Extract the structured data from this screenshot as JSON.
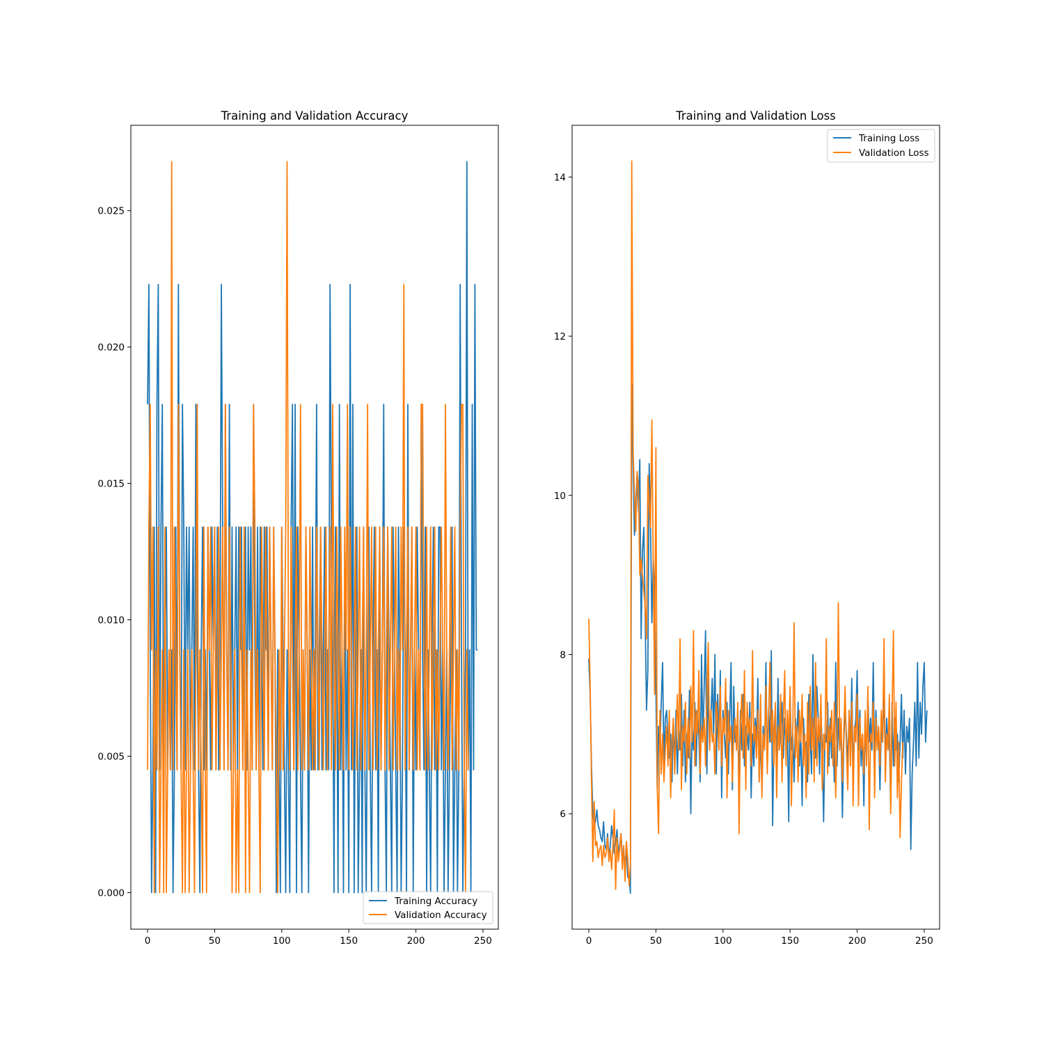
{
  "chart_data": [
    {
      "type": "line",
      "title": "Training and Validation Accuracy",
      "xlabel": "",
      "ylabel": "",
      "xlim": [
        -12.45,
        261.45
      ],
      "ylim": [
        -0.00134,
        0.02813
      ],
      "xticks": [
        0,
        50,
        100,
        150,
        200,
        250
      ],
      "xtick_labels": [
        "0",
        "50",
        "100",
        "150",
        "200",
        "250"
      ],
      "yticks": [
        0.0,
        0.005,
        0.01,
        0.015,
        0.02,
        0.025
      ],
      "ytick_labels": [
        "0.000",
        "0.005",
        "0.010",
        "0.015",
        "0.020",
        "0.025"
      ],
      "grid": false,
      "legend_position": "lower right",
      "series": [
        {
          "name": "Training Accuracy",
          "color": "#1f77b4",
          "values": [
            0.0179,
            0.0223,
            0.0089,
            0.0,
            0.0045,
            0.0134,
            0.0,
            0.0179,
            0.0223,
            0.0045,
            0.0134,
            0.0179,
            0.0045,
            0.0089,
            0.0134,
            0.0045,
            0.0089,
            0.0045,
            0.0089,
            0.0,
            0.0045,
            0.0134,
            0.0045,
            0.0223,
            0.0089,
            0.0045,
            0.0179,
            0.0134,
            0.0045,
            0.0134,
            0.0089,
            0.0134,
            0.0045,
            0.0089,
            0.0134,
            0.0045,
            0.0179,
            0.0089,
            0.0045,
            0.0,
            0.0089,
            0.0134,
            0.0045,
            0.0089,
            0.0045,
            0.0134,
            0.0089,
            0.0045,
            0.0134,
            0.0089,
            0.0134,
            0.0045,
            0.0134,
            0.0045,
            0.0089,
            0.0223,
            0.0134,
            0.0045,
            0.0179,
            0.0089,
            0.0045,
            0.0179,
            0.0045,
            0.0134,
            0.0045,
            0.0089,
            0.0134,
            0.0045,
            0.0134,
            0.0089,
            0.0134,
            0.0045,
            0.0089,
            0.0134,
            0.0045,
            0.0134,
            0.0089,
            0.0134,
            0.0045,
            0.0179,
            0.0089,
            0.0045,
            0.0134,
            0.0045,
            0.0134,
            0.0089,
            0.0045,
            0.0134,
            0.0089,
            0.0134,
            0.0045,
            0.0134,
            0.0089,
            0.0045,
            0.0134,
            0.0089,
            0.0,
            0.0089,
            0.0045,
            0.0,
            0.0134,
            0.0089,
            0.0045,
            0.0,
            0.0089,
            0.0045,
            0.0,
            0.0134,
            0.0179,
            0.0045,
            0.0179,
            0.0,
            0.0134,
            0.0089,
            0.0045,
            0.0,
            0.0089,
            0.0045,
            0.0134,
            0.0089,
            0.0,
            0.0089,
            0.0045,
            0.0134,
            0.0045,
            0.0089,
            0.0179,
            0.0045,
            0.0089,
            0.0134,
            0.0045,
            0.0089,
            0.0134,
            0.0045,
            0.0089,
            0.0045,
            0.0223,
            0.0134,
            0.0089,
            0.0,
            0.0134,
            0.0089,
            0.0,
            0.0179,
            0.0045,
            0.0089,
            0.0,
            0.0134,
            0.0045,
            0.0089,
            0.0,
            0.0223,
            0.0045,
            0.0179,
            0.0,
            0.0089,
            0.0134,
            0.0,
            0.0045,
            0.0089,
            0.0,
            0.0134,
            0.0045,
            0.0,
            0.0089,
            0.0134,
            0.0045,
            0.0,
            0.0089,
            0.0134,
            0.0045,
            0.0089,
            0.0,
            0.0134,
            0.0045,
            0.0089,
            0.0179,
            0.0045,
            0.0,
            0.0134,
            0.0089,
            0.0045,
            0.0,
            0.0134,
            0.0089,
            0.0045,
            0.0,
            0.0134,
            0.0089,
            0.0,
            0.0045,
            0.0134,
            0.0089,
            0.0,
            0.0179,
            0.0045,
            0.0089,
            0.0134,
            0.0,
            0.0089,
            0.0045,
            0.0134,
            0.0089,
            0.0045,
            0.0179,
            0.0089,
            0.0045,
            0.0134,
            0.0,
            0.0089,
            0.0045,
            0.0,
            0.0089,
            0.0134,
            0.0045,
            0.0089,
            0.0,
            0.0134,
            0.0134,
            0.0045,
            0.0089,
            0.0,
            0.0045,
            0.0089,
            0.0,
            0.0045,
            0.0089,
            0.0134,
            0.0,
            0.0045,
            0.0089,
            0.0,
            0.0045,
            0.0223,
            0.0089,
            0.0,
            0.0045,
            0.0089,
            0.0268,
            0.0045,
            0.0089,
            0.0,
            0.0179,
            0.0045,
            0.0223,
            0.0089,
            0.0089
          ]
        },
        {
          "name": "Validation Accuracy",
          "color": "#ff7f0e",
          "values": [
            0.0045,
            0.0134,
            0.0179,
            0.0089,
            0.0134,
            0.0,
            0.0089,
            0.0045,
            0.0134,
            0.0,
            0.0045,
            0.0089,
            0.0,
            0.0134,
            0.0,
            0.0045,
            0.0089,
            0.0045,
            0.0268,
            0.0045,
            0.0134,
            0.0089,
            0.0045,
            0.0179,
            0.0089,
            0.0045,
            0.0,
            0.0089,
            0.0,
            0.0045,
            0.0089,
            0.0,
            0.0045,
            0.0089,
            0.0045,
            0.0,
            0.0089,
            0.0179,
            0.0045,
            0.0089,
            0.0045,
            0.0,
            0.0134,
            0.0045,
            0.0,
            0.0134,
            0.0089,
            0.0134,
            0.0045,
            0.0089,
            0.0134,
            0.0045,
            0.0089,
            0.0134,
            0.0045,
            0.0089,
            0.0134,
            0.0045,
            0.0179,
            0.0089,
            0.0045,
            0.0134,
            0.0089,
            0.0,
            0.0045,
            0.0089,
            0.0,
            0.0045,
            0.0,
            0.0134,
            0.0089,
            0.0045,
            0.0134,
            0.0,
            0.0089,
            0.0045,
            0.0,
            0.0089,
            0.0045,
            0.0179,
            0.0134,
            0.0045,
            0.0089,
            0.0045,
            0.0,
            0.0134,
            0.0089,
            0.0045,
            0.0134,
            0.0089,
            0.0045,
            0.0134,
            0.0089,
            0.0045,
            0.0134,
            0.0089,
            0.0045,
            0.0,
            0.0089,
            0.0045,
            0.0134,
            0.0045,
            0.0089,
            0.0134,
            0.0268,
            0.0089,
            0.0045,
            0.0134,
            0.0089,
            0.0045,
            0.0089,
            0.0134,
            0.0045,
            0.0089,
            0.0179,
            0.0045,
            0.0089,
            0.0045,
            0.0134,
            0.0089,
            0.0045,
            0.0134,
            0.0089,
            0.0045,
            0.0089,
            0.0045,
            0.0134,
            0.0089,
            0.0045,
            0.0134,
            0.0089,
            0.0045,
            0.0089,
            0.0134,
            0.0045,
            0.0089,
            0.0134,
            0.0045,
            0.0179,
            0.0089,
            0.0045,
            0.0134,
            0.0089,
            0.0045,
            0.0134,
            0.0089,
            0.0045,
            0.0134,
            0.0089,
            0.0179,
            0.0045,
            0.0134,
            0.0089,
            0.0045,
            0.0089,
            0.0134,
            0.0045,
            0.0089,
            0.0134,
            0.0045,
            0.0089,
            0.0134,
            0.0045,
            0.0089,
            0.0179,
            0.0045,
            0.0089,
            0.0134,
            0.0045,
            0.0089,
            0.0134,
            0.0045,
            0.0089,
            0.0134,
            0.0045,
            0.0089,
            0.0134,
            0.0045,
            0.0089,
            0.0134,
            0.0045,
            0.0089,
            0.0134,
            0.0045,
            0.0089,
            0.0134,
            0.0045,
            0.0089,
            0.0045,
            0.0134,
            0.0089,
            0.0223,
            0.0045,
            0.0089,
            0.0134,
            0.0045,
            0.0089,
            0.0134,
            0.0045,
            0.0089,
            0.0134,
            0.0045,
            0.0089,
            0.0045,
            0.0179,
            0.0179,
            0.0089,
            0.0045,
            0.0134,
            0.0045,
            0.0089,
            0.0134,
            0.0045,
            0.0089,
            0.0134,
            0.0045,
            0.0089,
            0.0045,
            0.0089,
            0.0134,
            0.0089,
            0.0045,
            0.0179,
            0.0089,
            0.0045,
            0.0089,
            0.0134,
            0.0045,
            0.0089,
            0.0134,
            0.0045,
            0.0089,
            0.0045,
            0.0134,
            0.0179,
            0.0179,
            0.0045,
            0.0,
            0.0089,
            0.0045
          ]
        }
      ]
    },
    {
      "type": "line",
      "title": "Training and Validation Loss",
      "xlabel": "",
      "ylabel": "",
      "xlim": [
        -12.45,
        261.45
      ],
      "ylim": [
        4.55,
        14.65
      ],
      "xticks": [
        0,
        50,
        100,
        150,
        200,
        250
      ],
      "xtick_labels": [
        "0",
        "50",
        "100",
        "150",
        "200",
        "250"
      ],
      "yticks": [
        6,
        8,
        10,
        12,
        14
      ],
      "ytick_labels": [
        "6",
        "8",
        "10",
        "12",
        "14"
      ],
      "grid": false,
      "legend_position": "upper right",
      "series": [
        {
          "name": "Training Loss",
          "color": "#1f77b4",
          "values": [
            7.95,
            7.5,
            6.6,
            6.0,
            5.85,
            5.9,
            6.05,
            5.85,
            5.8,
            5.7,
            5.65,
            5.9,
            5.6,
            5.55,
            5.75,
            5.45,
            5.6,
            5.85,
            5.7,
            5.5,
            5.65,
            5.8,
            5.5,
            5.6,
            5.75,
            5.45,
            5.55,
            5.3,
            5.65,
            5.2,
            5.25,
            5.0,
            11.4,
            10.4,
            9.5,
            9.9,
            10.3,
            9.8,
            10.45,
            8.2,
            9.3,
            9.6,
            8.5,
            7.3,
            7.8,
            10.4,
            9.6,
            8.4,
            9.2,
            8.8,
            7.6,
            6.3,
            7.1,
            6.8,
            7.4,
            7.9,
            6.6,
            7.2,
            7.3,
            6.9,
            6.7,
            7.0,
            6.4,
            7.2,
            6.6,
            7.3,
            6.5,
            7.1,
            6.8,
            7.5,
            6.6,
            7.3,
            6.4,
            7.0,
            6.7,
            7.55,
            6.0,
            7.1,
            6.8,
            7.4,
            6.6,
            7.3,
            7.0,
            6.4,
            8.0,
            6.9,
            7.6,
            8.3,
            6.5,
            7.7,
            6.8,
            7.2,
            7.7,
            7.0,
            8.0,
            6.5,
            7.5,
            6.9,
            7.8,
            6.2,
            7.3,
            7.0,
            6.7,
            7.4,
            6.5,
            7.2,
            7.9,
            6.3,
            7.6,
            6.9,
            7.1,
            7.0,
            6.4,
            7.3,
            6.8,
            7.5,
            6.6,
            7.1,
            7.0,
            6.8,
            7.4,
            6.2,
            7.0,
            6.6,
            7.2,
            6.9,
            7.7,
            6.4,
            7.0,
            6.3,
            7.1,
            6.8,
            7.9,
            6.6,
            7.3,
            6.9,
            8.05,
            5.85,
            7.0,
            7.3,
            6.5,
            7.7,
            6.8,
            7.0,
            7.4,
            6.7,
            7.2,
            6.9,
            7.1,
            5.9,
            7.5,
            6.8,
            7.0,
            6.4,
            7.2,
            6.9,
            7.4,
            6.6,
            7.0,
            6.1,
            7.2,
            6.8,
            6.9,
            6.4,
            7.5,
            7.0,
            6.5,
            8.0,
            7.1,
            6.7,
            7.6,
            7.2,
            6.5,
            7.3,
            6.8,
            5.9,
            7.0,
            6.9,
            7.4,
            6.6,
            7.2,
            6.7,
            7.0,
            6.4,
            7.9,
            6.6,
            7.2,
            6.8,
            7.1,
            5.95,
            6.9,
            7.3,
            7.0,
            6.6,
            7.3,
            6.8,
            7.7,
            6.5,
            7.0,
            7.2,
            7.8,
            6.8,
            7.3,
            6.6,
            7.0,
            6.1,
            7.2,
            6.7,
            7.5,
            6.9,
            7.2,
            6.8,
            7.9,
            6.6,
            7.3,
            6.9,
            7.0,
            6.3,
            7.1,
            6.9,
            7.6,
            6.6,
            7.2,
            6.8,
            7.0,
            6.1,
            7.4,
            6.6,
            7.2,
            6.8,
            7.0,
            6.4,
            6.9,
            7.5,
            6.7,
            7.3,
            6.5,
            7.1,
            6.9,
            7.2,
            5.55,
            6.5,
            6.9,
            7.4,
            6.6,
            7.9,
            6.7,
            7.4,
            7.0,
            7.6,
            7.9,
            6.9,
            7.3
          ]
        },
        {
          "name": "Validation Loss",
          "color": "#ff7f0e",
          "values": [
            8.45,
            7.6,
            6.4,
            5.4,
            6.15,
            5.6,
            5.65,
            5.45,
            5.55,
            5.6,
            5.35,
            5.6,
            5.45,
            5.5,
            5.7,
            5.4,
            5.55,
            5.3,
            5.6,
            6.05,
            5.05,
            5.7,
            5.4,
            5.55,
            5.75,
            5.3,
            5.6,
            5.15,
            5.65,
            5.45,
            5.1,
            5.35,
            14.2,
            10.6,
            10.0,
            9.55,
            10.3,
            10.1,
            9.0,
            9.2,
            9.0,
            8.8,
            8.6,
            8.2,
            10.25,
            9.9,
            9.6,
            10.95,
            9.2,
            7.5,
            10.6,
            6.3,
            5.75,
            7.3,
            6.5,
            7.0,
            6.4,
            6.8,
            7.1,
            6.6,
            7.3,
            6.2,
            6.9,
            7.2,
            6.5,
            7.0,
            7.5,
            6.8,
            8.2,
            6.3,
            7.1,
            6.9,
            7.4,
            6.5,
            7.2,
            6.7,
            7.6,
            6.9,
            8.3,
            6.6,
            7.3,
            7.0,
            7.8,
            6.5,
            7.1,
            6.9,
            7.2,
            6.6,
            7.5,
            8.15,
            6.8,
            7.3,
            6.9,
            7.0,
            6.5,
            7.4,
            7.2,
            6.8,
            7.6,
            6.6,
            7.2,
            7.0,
            7.7,
            6.2,
            7.3,
            6.9,
            7.1,
            6.4,
            7.0,
            7.2,
            6.8,
            7.4,
            5.75,
            7.1,
            7.5,
            6.7,
            7.8,
            6.3,
            7.4,
            7.0,
            7.2,
            6.6,
            8.05,
            6.9,
            7.1,
            6.7,
            7.3,
            6.4,
            7.5,
            6.2,
            7.0,
            6.8,
            7.6,
            6.5,
            7.2,
            7.9,
            6.9,
            7.3,
            6.6,
            7.4,
            6.2,
            7.1,
            6.8,
            7.5,
            6.4,
            7.2,
            7.8,
            6.6,
            7.3,
            6.9,
            7.6,
            6.1,
            7.0,
            8.4,
            6.7,
            7.1,
            6.4,
            7.3,
            6.9,
            7.5,
            6.6,
            7.0,
            6.2,
            7.4,
            6.5,
            7.6,
            6.8,
            7.2,
            6.4,
            7.9,
            6.6,
            7.2,
            6.9,
            7.5,
            6.3,
            7.0,
            6.8,
            8.2,
            6.5,
            7.1,
            6.9,
            7.3,
            6.6,
            7.4,
            6.2,
            7.0,
            8.65,
            6.8,
            7.2,
            6.4,
            7.0,
            7.6,
            6.8,
            6.3,
            7.3,
            6.6,
            7.4,
            6.1,
            7.1,
            6.9,
            7.5,
            6.1,
            7.2,
            6.8,
            7.0,
            6.5,
            7.3,
            6.6,
            7.6,
            5.8,
            7.0,
            6.9,
            7.4,
            6.2,
            7.2,
            6.8,
            7.1,
            6.6,
            7.3,
            6.9,
            8.2,
            6.4,
            7.0,
            6.8,
            7.5,
            6.0,
            7.2,
            8.3,
            6.6,
            7.4,
            6.2,
            6.9,
            5.7,
            6.4,
            6.9
          ]
        }
      ]
    }
  ]
}
